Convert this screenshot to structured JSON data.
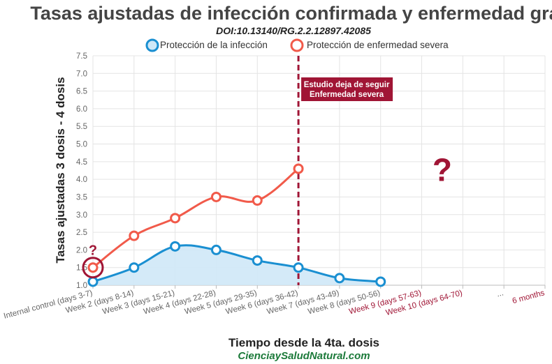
{
  "chart_data": {
    "type": "line",
    "title": "Tasas ajustadas de infección confirmada y enfermedad grave",
    "subtitle": "DOI:10.13140/RG.2.2.12897.42085",
    "xlabel": "Tiempo desde la 4ta. dosis",
    "ylabel": "Tasas ajustadas 3 dosis - 4 dosis",
    "source": "CienciaySaludNatural.com",
    "ylim": [
      1.0,
      7.5
    ],
    "yticks": [
      "1.0",
      "1.5",
      "2.0",
      "2.5",
      "3.0",
      "3.5",
      "4.0",
      "4.5",
      "5.0",
      "5.5",
      "6.0",
      "6.5",
      "7.0",
      "7.5"
    ],
    "grid": true,
    "legend_position": "top",
    "categories": [
      "Internal control (days 3-7)",
      "Week 2 (days 8-14)",
      "Week 3 (days 15-21)",
      "Week 4 (days 22-28)",
      "Week 5 (days 29-35)",
      "Week 6 (days 36-42)",
      "Week 7 (days 43-49)",
      "Week 8 (days 50-56)",
      "Week 9 (days 57-63)",
      "Week 10 (days 64-70)",
      "...",
      "6 months"
    ],
    "category_colors": [
      "#666666",
      "#666666",
      "#666666",
      "#666666",
      "#666666",
      "#666666",
      "#666666",
      "#666666",
      "#a01535",
      "#a01535",
      "#666666",
      "#a01535"
    ],
    "series": [
      {
        "name": "Protección de la infección",
        "color": "#1a8fd1",
        "fill": "#cfe8f7",
        "values": [
          1.1,
          1.5,
          2.1,
          2.0,
          1.7,
          1.5,
          1.2,
          1.1,
          null,
          null,
          null,
          null
        ]
      },
      {
        "name": "Protección de enfermedad severa",
        "color": "#f15a4a",
        "values": [
          1.5,
          2.4,
          2.9,
          3.5,
          3.4,
          4.3,
          null,
          null,
          null,
          null,
          null,
          null
        ]
      }
    ],
    "annotations": {
      "cutoff_label_line1": "Estudio deja de seguir",
      "cutoff_label_line2": "Enfermedad severa",
      "cutoff_category": "Week 6 (days 36-42)",
      "cutoff_color": "#a01535",
      "question_mark": "?",
      "question_mark_small": "?"
    }
  }
}
